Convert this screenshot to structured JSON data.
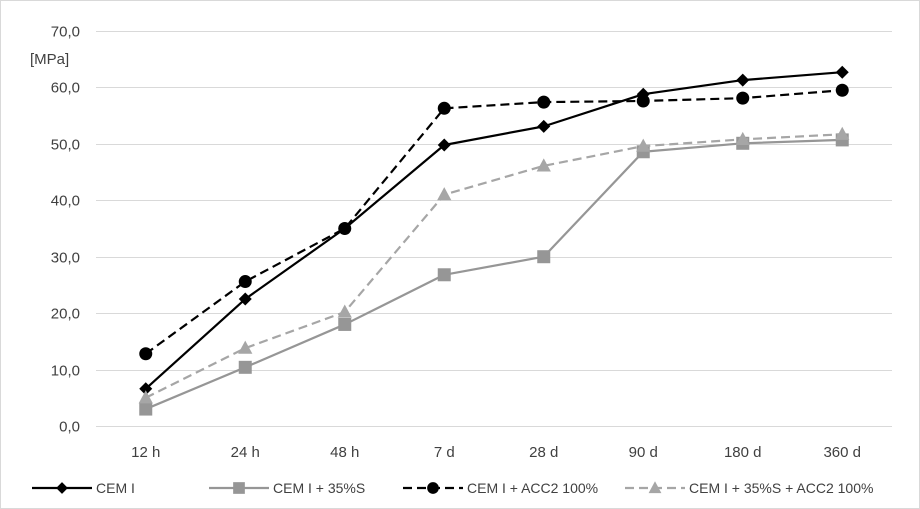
{
  "chart_data": {
    "type": "line",
    "title": "",
    "xlabel": "",
    "ylabel": "[MPa]",
    "categories": [
      "12 h",
      "24 h",
      "48 h",
      "7 d",
      "28 d",
      "90 d",
      "180 d",
      "360 d"
    ],
    "ylim": [
      0,
      70
    ],
    "y_ticks": [
      0,
      10,
      20,
      30,
      40,
      50,
      60,
      70
    ],
    "y_tick_labels": [
      "0,0",
      "10,0",
      "20,0",
      "30,0",
      "40,0",
      "50,0",
      "60,0",
      "70,0"
    ],
    "grid": true,
    "legend_position": "bottom",
    "series": [
      {
        "name": "CEM I",
        "values": [
          6.6,
          22.5,
          35.0,
          49.8,
          53.1,
          58.8,
          61.3,
          62.7
        ],
        "color": "#000000",
        "line_style": "solid",
        "marker": "diamond"
      },
      {
        "name": "CEM I + 35%S",
        "values": [
          3.0,
          10.4,
          18.0,
          26.8,
          30.0,
          48.6,
          50.1,
          50.7
        ],
        "color": "#969696",
        "line_style": "solid",
        "marker": "square"
      },
      {
        "name": "CEM I + ACC2 100%",
        "values": [
          12.8,
          25.6,
          35.0,
          56.3,
          57.4,
          57.6,
          58.1,
          59.5
        ],
        "color": "#000000",
        "line_style": "dashed",
        "marker": "circle"
      },
      {
        "name": "CEM I + 35%S + ACC2 100%",
        "values": [
          5.0,
          13.8,
          20.2,
          41.0,
          46.1,
          49.6,
          50.8,
          51.7
        ],
        "color": "#a6a6a6",
        "line_style": "dashed",
        "marker": "triangle"
      }
    ]
  }
}
